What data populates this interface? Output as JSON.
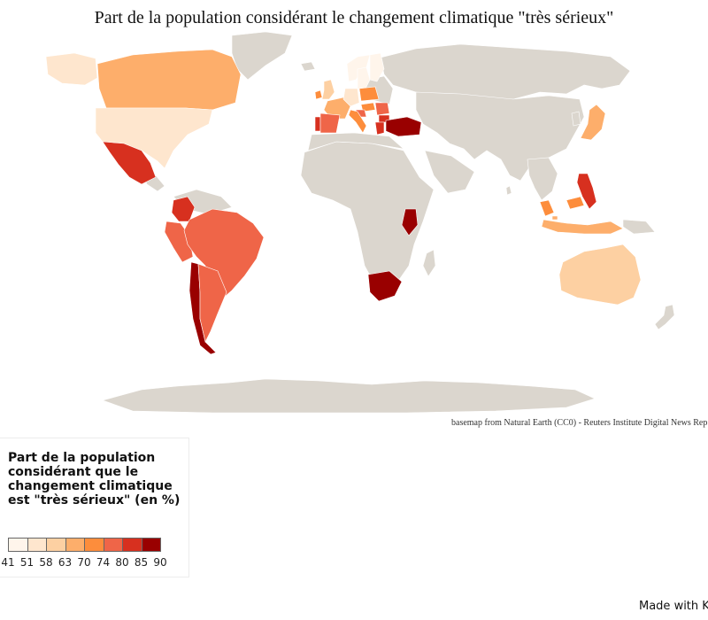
{
  "title": "Part de la population considérant le changement climatique \"très sérieux\"",
  "attribution": "basemap from Natural Earth (CC0) - Reuters Institute Digital News Rep",
  "legend": {
    "title": "Part de la population considérant que le changement climatique est \"très sérieux\" (en %)",
    "breaks": [
      "41",
      "51",
      "58",
      "63",
      "70",
      "74",
      "80",
      "85",
      "90"
    ],
    "colors": [
      "#fff5eb",
      "#fee6ce",
      "#fdd0a2",
      "#fdae6b",
      "#fd8d3c",
      "#ef6548",
      "#d7301f",
      "#990000"
    ]
  },
  "footer": {
    "made_with": "Made with K"
  },
  "colors": {
    "land": "#dbd6ce",
    "border": "#ffffff",
    "ocean": "#ffffff"
  },
  "countries": [
    {
      "name": "Canada",
      "class": 3
    },
    {
      "name": "United States",
      "class": 1
    },
    {
      "name": "Mexico",
      "class": 6
    },
    {
      "name": "Brazil",
      "class": 5
    },
    {
      "name": "Argentina",
      "class": 5
    },
    {
      "name": "Chile",
      "class": 7
    },
    {
      "name": "Peru",
      "class": 5
    },
    {
      "name": "Colombia",
      "class": 6
    },
    {
      "name": "Spain",
      "class": 5
    },
    {
      "name": "Portugal",
      "class": 6
    },
    {
      "name": "Turkey",
      "class": 7
    },
    {
      "name": "Kenya",
      "class": 7
    },
    {
      "name": "South Africa",
      "class": 7
    },
    {
      "name": "Philippines",
      "class": 6
    },
    {
      "name": "Japan",
      "class": 3
    },
    {
      "name": "Australia",
      "class": 2
    },
    {
      "name": "Ireland",
      "class": 4
    },
    {
      "name": "United Kingdom",
      "class": 2
    },
    {
      "name": "France",
      "class": 3
    },
    {
      "name": "Germany",
      "class": 1
    },
    {
      "name": "Norway",
      "class": 0
    },
    {
      "name": "Sweden",
      "class": 0
    },
    {
      "name": "Finland",
      "class": 0
    },
    {
      "name": "Poland",
      "class": 4
    },
    {
      "name": "Italy",
      "class": 4
    },
    {
      "name": "Greece",
      "class": 6
    },
    {
      "name": "Hungary",
      "class": 4
    },
    {
      "name": "Romania",
      "class": 5
    },
    {
      "name": "Bulgaria",
      "class": 6
    },
    {
      "name": "Croatia",
      "class": 5
    },
    {
      "name": "Malaysia",
      "class": 4
    },
    {
      "name": "Singapore",
      "class": 3
    },
    {
      "name": "Indonesia",
      "class": 3
    }
  ]
}
